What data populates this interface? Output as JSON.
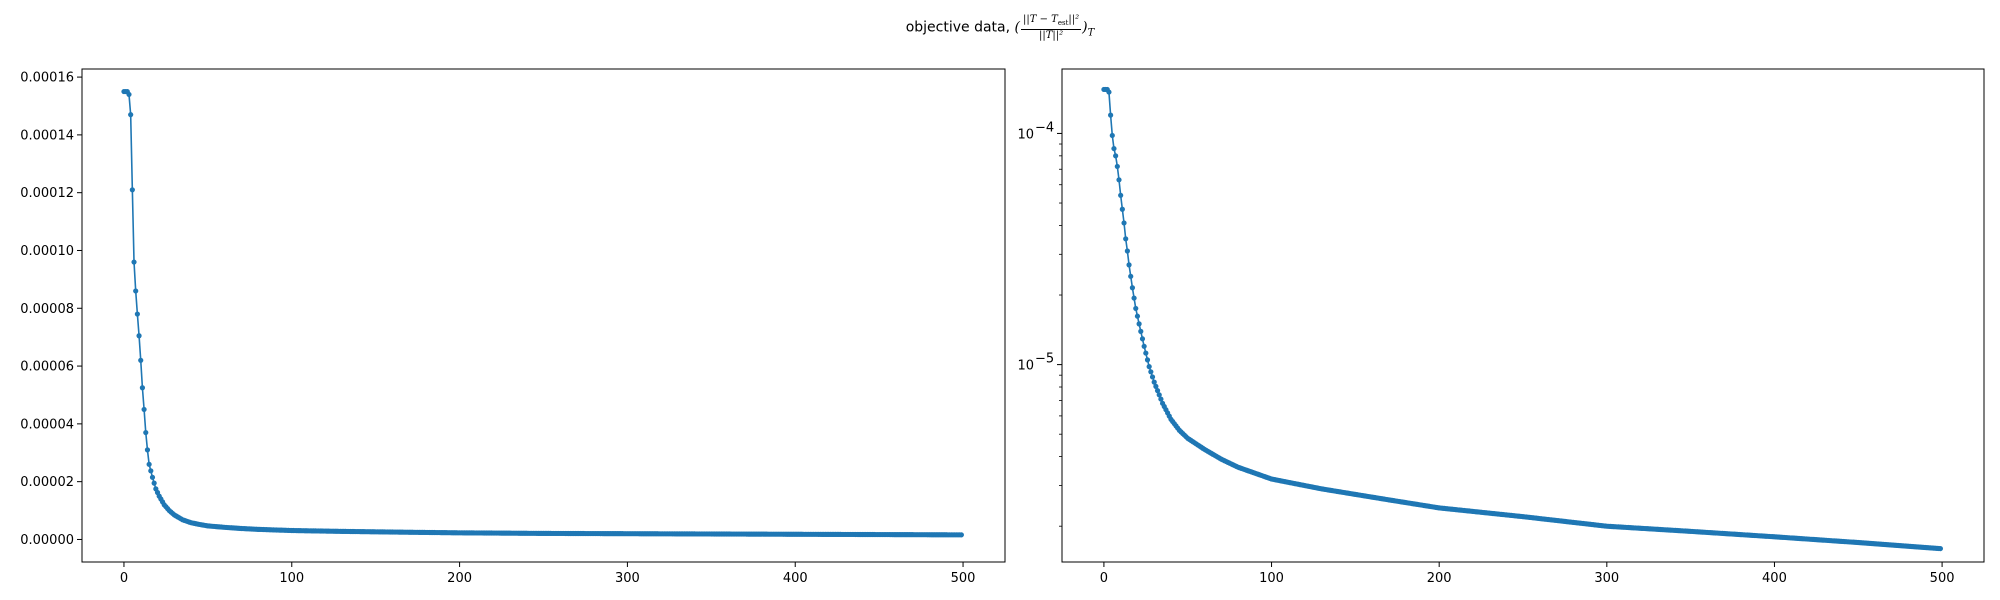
{
  "figure": {
    "title_text": "objective data,",
    "title_math": {
      "open": "(",
      "numerator": "||T − T",
      "numerator_sub": "est",
      "numerator_tail": "||²",
      "denominator": "||T||²",
      "close": ")",
      "subscript": "T"
    }
  },
  "chart_data": [
    {
      "type": "line",
      "markers": true,
      "color": "#1f77b4",
      "yscale": "linear",
      "xlim": [
        -25,
        525
      ],
      "ylim": [
        -7.8e-06,
        0.0001628
      ],
      "x_ticks": [
        0,
        100,
        200,
        300,
        400,
        500
      ],
      "x_tick_labels": [
        "0",
        "100",
        "200",
        "300",
        "400",
        "500"
      ],
      "y_ticks": [
        0,
        2e-05,
        4e-05,
        6e-05,
        8e-05,
        0.0001,
        0.00012,
        0.00014,
        0.00016
      ],
      "y_tick_labels": [
        "0.00000",
        "0.00002",
        "0.00004",
        "0.00006",
        "0.00008",
        "0.00010",
        "0.00012",
        "0.00014",
        "0.00016"
      ],
      "series": [
        {
          "x": [
            0,
            1,
            2,
            3,
            4,
            5,
            6,
            7,
            8,
            9,
            10,
            11,
            12,
            13,
            14,
            15,
            17,
            19,
            21,
            24,
            27,
            30,
            35,
            40,
            45,
            50,
            60,
            70,
            80,
            100,
            130,
            170,
            200,
            250,
            300,
            350,
            400,
            450,
            499
          ],
          "y": [
            0.000155,
            0.000155,
            0.000155,
            0.000154,
            0.000147,
            0.000121,
            9.6e-05,
            8.6e-05,
            7.8e-05,
            7.05e-05,
            6.2e-05,
            5.25e-05,
            4.5e-05,
            3.7e-05,
            3.1e-05,
            2.6e-05,
            2.15e-05,
            1.75e-05,
            1.5e-05,
            1.2e-05,
            1e-05,
            8.5e-06,
            6.8e-06,
            5.8e-06,
            5.2e-06,
            4.7e-06,
            4.2e-06,
            3.8e-06,
            3.5e-06,
            3.1e-06,
            2.8e-06,
            2.5e-06,
            2.3e-06,
            2.1e-06,
            2e-06,
            1.9e-06,
            1.8e-06,
            1.7e-06,
            1.6e-06
          ]
        }
      ]
    },
    {
      "type": "line",
      "markers": true,
      "color": "#1f77b4",
      "yscale": "log",
      "xlim": [
        -25,
        525
      ],
      "ylim": [
        1.4e-06,
        0.00019
      ],
      "x_ticks": [
        0,
        100,
        200,
        300,
        400,
        500
      ],
      "x_tick_labels": [
        "0",
        "100",
        "200",
        "300",
        "400",
        "500"
      ],
      "y_major_ticks": [
        1e-05,
        0.0001
      ],
      "y_tick_labels": [
        {
          "base": "10",
          "exp": "−5"
        },
        {
          "base": "10",
          "exp": "−4"
        }
      ],
      "y_minor_ticks": [
        2e-06,
        3e-06,
        4e-06,
        5e-06,
        6e-06,
        7e-06,
        8e-06,
        9e-06,
        2e-05,
        3e-05,
        4e-05,
        5e-05,
        6e-05,
        7e-05,
        8e-05,
        9e-05
      ],
      "series": [
        {
          "x": [
            0,
            1,
            2,
            3,
            4,
            5,
            6,
            7,
            8,
            9,
            10,
            11,
            12,
            13,
            14,
            15,
            17,
            19,
            21,
            24,
            27,
            30,
            35,
            40,
            45,
            50,
            60,
            70,
            80,
            100,
            130,
            170,
            200,
            250,
            300,
            350,
            400,
            450,
            499
          ],
          "y": [
            0.000155,
            0.000155,
            0.000155,
            0.000151,
            0.00012,
            9.8e-05,
            8.6e-05,
            8e-05,
            7.2e-05,
            6.3e-05,
            5.4e-05,
            4.7e-05,
            4.1e-05,
            3.5e-05,
            3.1e-05,
            2.7e-05,
            2.15e-05,
            1.75e-05,
            1.5e-05,
            1.2e-05,
            9.8e-06,
            8.4e-06,
            6.8e-06,
            5.8e-06,
            5.2e-06,
            4.8e-06,
            4.3e-06,
            3.9e-06,
            3.6e-06,
            3.2e-06,
            2.9e-06,
            2.6e-06,
            2.4e-06,
            2.2e-06,
            2e-06,
            1.9e-06,
            1.8e-06,
            1.7e-06,
            1.6e-06
          ]
        }
      ]
    }
  ]
}
